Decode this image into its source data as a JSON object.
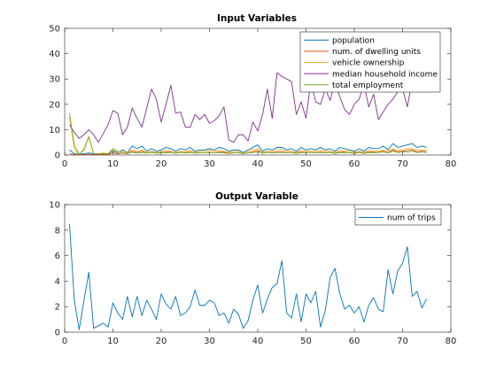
{
  "chart_data": [
    {
      "type": "line",
      "title": "Input Variables",
      "xlabel": "",
      "ylabel": "",
      "xlim": [
        0,
        80
      ],
      "ylim": [
        0,
        50
      ],
      "xticks": [
        0,
        10,
        20,
        30,
        40,
        50,
        60,
        70,
        80
      ],
      "yticks": [
        0,
        10,
        20,
        30,
        40,
        50
      ],
      "grid": false,
      "legend_position": "top-right",
      "series": [
        {
          "name": "population",
          "color": "#0072BD",
          "x": [
            1,
            2,
            3,
            4,
            5,
            6,
            7,
            8,
            9,
            10,
            11,
            12,
            13,
            14,
            15,
            16,
            17,
            18,
            19,
            20,
            21,
            22,
            23,
            24,
            25,
            26,
            27,
            28,
            29,
            30,
            31,
            32,
            33,
            34,
            35,
            36,
            37,
            38,
            39,
            40,
            41,
            42,
            43,
            44,
            45,
            46,
            47,
            48,
            49,
            50,
            51,
            52,
            53,
            54,
            55,
            56,
            57,
            58,
            59,
            60,
            61,
            62,
            63,
            64,
            65,
            66,
            67,
            68,
            69,
            70,
            71,
            72,
            73,
            74,
            75
          ],
          "values": [
            2,
            0.5,
            0.3,
            0.5,
            0.8,
            0.5,
            0.4,
            0.6,
            0.5,
            1.5,
            0.8,
            2,
            1,
            3.5,
            2.5,
            3.5,
            1.5,
            2.5,
            1.5,
            2,
            3,
            2.5,
            1.5,
            2.5,
            2,
            3,
            1.5,
            2,
            2,
            2.5,
            2,
            3,
            2.5,
            1.5,
            2,
            2,
            1,
            2,
            3,
            4,
            1.5,
            2.5,
            2,
            3,
            3,
            2,
            2.5,
            1.5,
            3,
            2,
            2.5,
            2,
            3,
            2,
            2.5,
            1.5,
            3,
            2.5,
            2,
            1.5,
            2.5,
            1.5,
            3,
            2.5,
            2.5,
            3.5,
            2,
            4.5,
            3,
            3.5,
            4,
            4.5,
            3,
            3.5,
            3
          ]
        },
        {
          "name": "num. of dwelling units",
          "color": "#D95319",
          "x": [
            1,
            2,
            3,
            4,
            5,
            6,
            7,
            8,
            9,
            10,
            11,
            12,
            13,
            14,
            15,
            16,
            17,
            18,
            19,
            20,
            21,
            22,
            23,
            24,
            25,
            26,
            27,
            28,
            29,
            30,
            31,
            32,
            33,
            34,
            35,
            36,
            37,
            38,
            39,
            40,
            41,
            42,
            43,
            44,
            45,
            46,
            47,
            48,
            49,
            50,
            51,
            52,
            53,
            54,
            55,
            56,
            57,
            58,
            59,
            60,
            61,
            62,
            63,
            64,
            65,
            66,
            67,
            68,
            69,
            70,
            71,
            72,
            73,
            74,
            75
          ],
          "values": [
            0.5,
            0.2,
            0.2,
            0.2,
            0.3,
            0.2,
            0.2,
            0.2,
            0.2,
            0.8,
            0.4,
            0.8,
            0.5,
            1.5,
            1,
            1.5,
            0.7,
            1.2,
            0.7,
            0.9,
            1.3,
            1.1,
            0.7,
            1.1,
            0.9,
            1.3,
            0.7,
            0.9,
            0.9,
            1.1,
            0.9,
            1.3,
            1.1,
            0.7,
            0.9,
            0.9,
            0.5,
            0.9,
            1.3,
            1.8,
            0.7,
            1.1,
            0.9,
            1.3,
            1.3,
            0.9,
            1.1,
            0.7,
            1.3,
            0.9,
            1.1,
            0.9,
            1.3,
            0.9,
            1.1,
            0.7,
            1.3,
            1.1,
            0.9,
            0.7,
            1.1,
            0.7,
            1.3,
            1.1,
            1.1,
            1.5,
            0.9,
            2,
            1.3,
            1.5,
            1.8,
            2,
            1.3,
            1.5,
            1.3
          ]
        },
        {
          "name": "vehicle ownership",
          "color": "#EDB120",
          "x": [
            1,
            2,
            3,
            4,
            5,
            6,
            7,
            8,
            9,
            10,
            11,
            12,
            13,
            14,
            15,
            16,
            17,
            18,
            19,
            20,
            21,
            22,
            23,
            24,
            25,
            26,
            27,
            28,
            29,
            30,
            31,
            32,
            33,
            34,
            35,
            36,
            37,
            38,
            39,
            40,
            41,
            42,
            43,
            44,
            45,
            46,
            47,
            48,
            49,
            50,
            51,
            52,
            53,
            54,
            55,
            56,
            57,
            58,
            59,
            60,
            61,
            62,
            63,
            64,
            65,
            66,
            67,
            68,
            69,
            70,
            71,
            72,
            73,
            74,
            75
          ],
          "values": [
            15,
            2.5,
            0.2,
            2.5,
            7.5,
            0.5,
            0.5,
            0.8,
            0.6,
            2,
            1,
            1.5,
            1,
            2,
            1.5,
            2,
            1,
            1.5,
            1,
            1.5,
            2,
            1.5,
            1,
            1.5,
            1.2,
            2,
            1,
            1.5,
            1.5,
            2,
            1.5,
            2,
            1.5,
            1,
            1.5,
            1.5,
            0.7,
            1.5,
            2,
            2.5,
            1,
            1.5,
            1.5,
            2,
            2,
            1.5,
            1.5,
            1,
            2,
            1.5,
            1.5,
            1.5,
            2,
            1.5,
            1.5,
            1,
            2,
            1.5,
            1.5,
            1,
            1.5,
            1,
            2,
            1.5,
            1.5,
            2,
            1.5,
            2.5,
            2,
            2,
            2.5,
            2.5,
            2,
            2,
            2
          ]
        },
        {
          "name": "median household income",
          "color": "#7E2F8E",
          "x": [
            1,
            2,
            3,
            4,
            5,
            6,
            7,
            8,
            9,
            10,
            11,
            12,
            13,
            14,
            15,
            16,
            17,
            18,
            19,
            20,
            21,
            22,
            23,
            24,
            25,
            26,
            27,
            28,
            29,
            30,
            31,
            32,
            33,
            34,
            35,
            36,
            37,
            38,
            39,
            40,
            41,
            42,
            43,
            44,
            45,
            46,
            47,
            48,
            49,
            50,
            51,
            52,
            53,
            54,
            55,
            56,
            57,
            58,
            59,
            60,
            61,
            62,
            63,
            64,
            65,
            66,
            67,
            68,
            69,
            70,
            71,
            72,
            73,
            74,
            75
          ],
          "values": [
            12,
            9,
            6.5,
            8,
            10,
            8,
            5,
            8.5,
            12,
            17.5,
            16.5,
            8,
            11,
            18.5,
            14.5,
            11,
            18.5,
            26,
            22,
            13,
            20,
            27.5,
            16.5,
            17,
            11,
            11,
            16,
            14,
            16,
            12.5,
            13.5,
            15.5,
            19,
            6,
            5,
            8,
            8,
            5.5,
            13,
            9.5,
            16,
            26,
            14.5,
            32.5,
            31,
            30,
            29,
            16,
            21,
            14.5,
            29,
            21,
            20,
            26,
            21.5,
            29,
            23,
            18,
            16,
            20,
            22,
            28,
            19,
            24,
            14,
            17,
            20,
            22,
            25,
            26,
            19,
            30,
            28.5,
            30,
            29
          ]
        },
        {
          "name": "total employment",
          "color": "#77AC30",
          "x": [
            1,
            2,
            3,
            4,
            5,
            6,
            7,
            8,
            9,
            10,
            11,
            12,
            13,
            14,
            15,
            16,
            17,
            18,
            19,
            20,
            21,
            22,
            23,
            24,
            25,
            26,
            27,
            28,
            29,
            30,
            31,
            32,
            33,
            34,
            35,
            36,
            37,
            38,
            39,
            40,
            41,
            42,
            43,
            44,
            45,
            46,
            47,
            48,
            49,
            50,
            51,
            52,
            53,
            54,
            55,
            56,
            57,
            58,
            59,
            60,
            61,
            62,
            63,
            64,
            65,
            66,
            67,
            68,
            69,
            70,
            71,
            72,
            73,
            74,
            75
          ],
          "values": [
            16.5,
            4,
            0.3,
            2,
            7,
            0.5,
            0.5,
            0.5,
            0.5,
            2.5,
            1.5,
            0.8,
            1,
            1,
            0.8,
            1,
            0.8,
            1,
            0.8,
            1,
            0.8,
            1,
            0.8,
            1,
            0.8,
            1,
            0.8,
            1,
            0.8,
            1,
            0.8,
            1,
            0.8,
            0.6,
            0.8,
            1,
            0.6,
            0.8,
            1,
            1.2,
            0.8,
            1,
            0.8,
            1,
            1,
            0.8,
            1,
            0.6,
            1,
            0.8,
            1,
            0.8,
            1,
            0.8,
            1,
            0.6,
            1,
            0.8,
            1,
            0.6,
            1,
            0.6,
            1,
            0.8,
            1,
            1.2,
            0.8,
            1.5,
            1,
            1.2,
            1.2,
            1.5,
            1,
            1.2,
            1
          ]
        }
      ]
    },
    {
      "type": "line",
      "title": "Output Variable",
      "xlabel": "",
      "ylabel": "",
      "xlim": [
        0,
        80
      ],
      "ylim": [
        0,
        10
      ],
      "xticks": [
        0,
        10,
        20,
        30,
        40,
        50,
        60,
        70,
        80
      ],
      "yticks": [
        0,
        2,
        4,
        6,
        8,
        10
      ],
      "grid": false,
      "legend_position": "top-right",
      "series": [
        {
          "name": "num of trips",
          "color": "#0072BD",
          "x": [
            1,
            2,
            3,
            4,
            5,
            6,
            7,
            8,
            9,
            10,
            11,
            12,
            13,
            14,
            15,
            16,
            17,
            18,
            19,
            20,
            21,
            22,
            23,
            24,
            25,
            26,
            27,
            28,
            29,
            30,
            31,
            32,
            33,
            34,
            35,
            36,
            37,
            38,
            39,
            40,
            41,
            42,
            43,
            44,
            45,
            46,
            47,
            48,
            49,
            50,
            51,
            52,
            53,
            54,
            55,
            56,
            57,
            58,
            59,
            60,
            61,
            62,
            63,
            64,
            65,
            66,
            67,
            68,
            69,
            70,
            71,
            72,
            73,
            74,
            75
          ],
          "values": [
            8.5,
            2.5,
            0.2,
            2.5,
            4.7,
            0.3,
            0.5,
            0.7,
            0.4,
            2.3,
            1.5,
            1,
            2.8,
            1.2,
            2.8,
            1.3,
            2.5,
            1.8,
            1,
            3,
            2.2,
            1.8,
            2.8,
            1.3,
            1.5,
            2,
            3.3,
            2.1,
            2.1,
            2.5,
            2.3,
            1.3,
            1.5,
            0.7,
            1.8,
            1.4,
            0.3,
            0.9,
            2.5,
            3.7,
            1.5,
            2.6,
            3.5,
            3.8,
            5.6,
            1.5,
            1.1,
            3,
            0.8,
            3,
            2.3,
            3.2,
            0.4,
            1.7,
            4.3,
            5,
            3,
            1.8,
            2.1,
            1.5,
            2,
            0.8,
            2.1,
            2.7,
            1.8,
            1.6,
            4.9,
            3,
            4.8,
            5.4,
            6.7,
            2.8,
            3.2,
            1.9,
            2.6
          ]
        }
      ]
    }
  ]
}
